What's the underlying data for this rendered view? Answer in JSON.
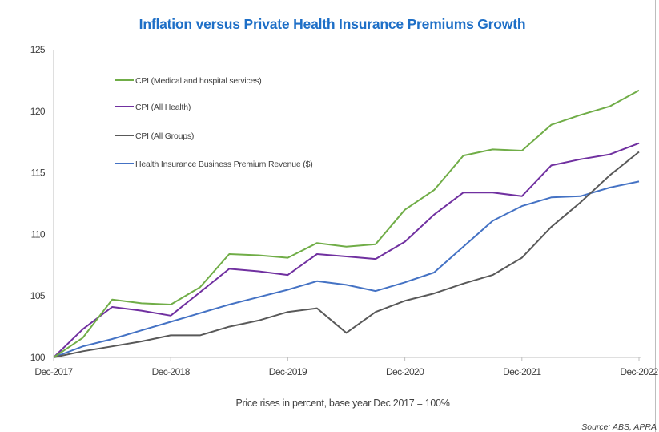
{
  "chart_data": {
    "type": "line",
    "title": "Inflation versus Private Health Insurance Premiums Growth",
    "xlabel": "Price rises in percent, base year Dec 2017 = 100%",
    "ylabel": "",
    "source": "Source: ABS, APRA",
    "x_ticks": [
      "Dec-2017",
      "Dec-2018",
      "Dec-2019",
      "Dec-2020",
      "Dec-2021",
      "Dec-2022"
    ],
    "y_ticks": [
      100,
      105,
      110,
      115,
      120,
      125
    ],
    "ylim": [
      100,
      125
    ],
    "x_periods": [
      "Dec-2017",
      "Mar-2018",
      "Jun-2018",
      "Sep-2018",
      "Dec-2018",
      "Mar-2019",
      "Jun-2019",
      "Sep-2019",
      "Dec-2019",
      "Mar-2020",
      "Jun-2020",
      "Sep-2020",
      "Dec-2020",
      "Mar-2021",
      "Jun-2021",
      "Sep-2021",
      "Dec-2021",
      "Mar-2022",
      "Jun-2022",
      "Sep-2022",
      "Dec-2022"
    ],
    "legend_position": "top-left",
    "grid": false,
    "series": [
      {
        "name": "CPI (Medical and hospital services)",
        "color": "#70ad47",
        "values": [
          100,
          101.6,
          104.7,
          104.4,
          104.3,
          105.7,
          108.4,
          108.3,
          108.1,
          109.3,
          109.0,
          109.2,
          112.0,
          113.6,
          116.4,
          116.9,
          116.8,
          118.9,
          119.7,
          120.4,
          121.7
        ]
      },
      {
        "name": "CPI (All Health)",
        "color": "#7030a0",
        "values": [
          100,
          102.3,
          104.1,
          103.8,
          103.4,
          105.3,
          107.2,
          107.0,
          106.7,
          108.4,
          108.2,
          108.0,
          109.4,
          111.6,
          113.4,
          113.4,
          113.1,
          115.6,
          116.1,
          116.5,
          117.4
        ]
      },
      {
        "name": "CPI (All Groups)",
        "color": "#595959",
        "values": [
          100,
          100.5,
          100.9,
          101.3,
          101.8,
          101.8,
          102.5,
          103.0,
          103.7,
          104.0,
          102.0,
          103.7,
          104.6,
          105.2,
          106.0,
          106.7,
          108.1,
          110.6,
          112.6,
          114.8,
          116.7
        ]
      },
      {
        "name": "Health Insurance Business Premium Revenue ($)",
        "color": "#4472c4",
        "values": [
          100,
          100.9,
          101.5,
          102.2,
          102.9,
          103.6,
          104.3,
          104.9,
          105.5,
          106.2,
          105.9,
          105.4,
          106.1,
          106.9,
          109.0,
          111.1,
          112.3,
          113.0,
          113.1,
          113.8,
          114.3
        ]
      }
    ]
  }
}
